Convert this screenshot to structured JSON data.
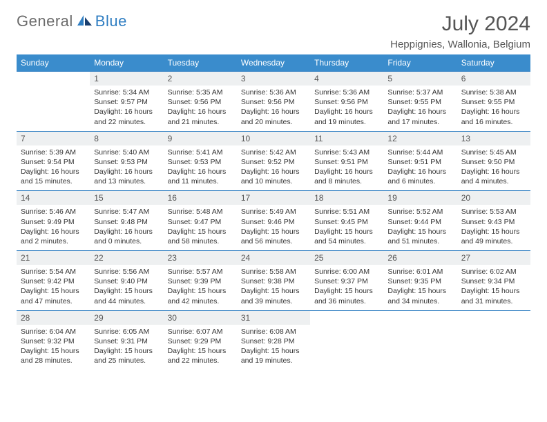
{
  "logo": {
    "part1": "General",
    "part2": "Blue"
  },
  "title": "July 2024",
  "location": "Heppignies, Wallonia, Belgium",
  "colors": {
    "header_bg": "#3a8ccc",
    "border": "#2f7ec2",
    "daynum_bg": "#eef0f1",
    "logo_gray": "#6b6b6b",
    "logo_blue": "#2f7ec2"
  },
  "weekdays": [
    "Sunday",
    "Monday",
    "Tuesday",
    "Wednesday",
    "Thursday",
    "Friday",
    "Saturday"
  ],
  "weeks": [
    {
      "days": [
        {
          "num": "",
          "sunrise": "",
          "sunset": "",
          "daylightA": "",
          "daylightB": ""
        },
        {
          "num": "1",
          "sunrise": "Sunrise: 5:34 AM",
          "sunset": "Sunset: 9:57 PM",
          "daylightA": "Daylight: 16 hours",
          "daylightB": "and 22 minutes."
        },
        {
          "num": "2",
          "sunrise": "Sunrise: 5:35 AM",
          "sunset": "Sunset: 9:56 PM",
          "daylightA": "Daylight: 16 hours",
          "daylightB": "and 21 minutes."
        },
        {
          "num": "3",
          "sunrise": "Sunrise: 5:36 AM",
          "sunset": "Sunset: 9:56 PM",
          "daylightA": "Daylight: 16 hours",
          "daylightB": "and 20 minutes."
        },
        {
          "num": "4",
          "sunrise": "Sunrise: 5:36 AM",
          "sunset": "Sunset: 9:56 PM",
          "daylightA": "Daylight: 16 hours",
          "daylightB": "and 19 minutes."
        },
        {
          "num": "5",
          "sunrise": "Sunrise: 5:37 AM",
          "sunset": "Sunset: 9:55 PM",
          "daylightA": "Daylight: 16 hours",
          "daylightB": "and 17 minutes."
        },
        {
          "num": "6",
          "sunrise": "Sunrise: 5:38 AM",
          "sunset": "Sunset: 9:55 PM",
          "daylightA": "Daylight: 16 hours",
          "daylightB": "and 16 minutes."
        }
      ]
    },
    {
      "days": [
        {
          "num": "7",
          "sunrise": "Sunrise: 5:39 AM",
          "sunset": "Sunset: 9:54 PM",
          "daylightA": "Daylight: 16 hours",
          "daylightB": "and 15 minutes."
        },
        {
          "num": "8",
          "sunrise": "Sunrise: 5:40 AM",
          "sunset": "Sunset: 9:53 PM",
          "daylightA": "Daylight: 16 hours",
          "daylightB": "and 13 minutes."
        },
        {
          "num": "9",
          "sunrise": "Sunrise: 5:41 AM",
          "sunset": "Sunset: 9:53 PM",
          "daylightA": "Daylight: 16 hours",
          "daylightB": "and 11 minutes."
        },
        {
          "num": "10",
          "sunrise": "Sunrise: 5:42 AM",
          "sunset": "Sunset: 9:52 PM",
          "daylightA": "Daylight: 16 hours",
          "daylightB": "and 10 minutes."
        },
        {
          "num": "11",
          "sunrise": "Sunrise: 5:43 AM",
          "sunset": "Sunset: 9:51 PM",
          "daylightA": "Daylight: 16 hours",
          "daylightB": "and 8 minutes."
        },
        {
          "num": "12",
          "sunrise": "Sunrise: 5:44 AM",
          "sunset": "Sunset: 9:51 PM",
          "daylightA": "Daylight: 16 hours",
          "daylightB": "and 6 minutes."
        },
        {
          "num": "13",
          "sunrise": "Sunrise: 5:45 AM",
          "sunset": "Sunset: 9:50 PM",
          "daylightA": "Daylight: 16 hours",
          "daylightB": "and 4 minutes."
        }
      ]
    },
    {
      "days": [
        {
          "num": "14",
          "sunrise": "Sunrise: 5:46 AM",
          "sunset": "Sunset: 9:49 PM",
          "daylightA": "Daylight: 16 hours",
          "daylightB": "and 2 minutes."
        },
        {
          "num": "15",
          "sunrise": "Sunrise: 5:47 AM",
          "sunset": "Sunset: 9:48 PM",
          "daylightA": "Daylight: 16 hours",
          "daylightB": "and 0 minutes."
        },
        {
          "num": "16",
          "sunrise": "Sunrise: 5:48 AM",
          "sunset": "Sunset: 9:47 PM",
          "daylightA": "Daylight: 15 hours",
          "daylightB": "and 58 minutes."
        },
        {
          "num": "17",
          "sunrise": "Sunrise: 5:49 AM",
          "sunset": "Sunset: 9:46 PM",
          "daylightA": "Daylight: 15 hours",
          "daylightB": "and 56 minutes."
        },
        {
          "num": "18",
          "sunrise": "Sunrise: 5:51 AM",
          "sunset": "Sunset: 9:45 PM",
          "daylightA": "Daylight: 15 hours",
          "daylightB": "and 54 minutes."
        },
        {
          "num": "19",
          "sunrise": "Sunrise: 5:52 AM",
          "sunset": "Sunset: 9:44 PM",
          "daylightA": "Daylight: 15 hours",
          "daylightB": "and 51 minutes."
        },
        {
          "num": "20",
          "sunrise": "Sunrise: 5:53 AM",
          "sunset": "Sunset: 9:43 PM",
          "daylightA": "Daylight: 15 hours",
          "daylightB": "and 49 minutes."
        }
      ]
    },
    {
      "days": [
        {
          "num": "21",
          "sunrise": "Sunrise: 5:54 AM",
          "sunset": "Sunset: 9:42 PM",
          "daylightA": "Daylight: 15 hours",
          "daylightB": "and 47 minutes."
        },
        {
          "num": "22",
          "sunrise": "Sunrise: 5:56 AM",
          "sunset": "Sunset: 9:40 PM",
          "daylightA": "Daylight: 15 hours",
          "daylightB": "and 44 minutes."
        },
        {
          "num": "23",
          "sunrise": "Sunrise: 5:57 AM",
          "sunset": "Sunset: 9:39 PM",
          "daylightA": "Daylight: 15 hours",
          "daylightB": "and 42 minutes."
        },
        {
          "num": "24",
          "sunrise": "Sunrise: 5:58 AM",
          "sunset": "Sunset: 9:38 PM",
          "daylightA": "Daylight: 15 hours",
          "daylightB": "and 39 minutes."
        },
        {
          "num": "25",
          "sunrise": "Sunrise: 6:00 AM",
          "sunset": "Sunset: 9:37 PM",
          "daylightA": "Daylight: 15 hours",
          "daylightB": "and 36 minutes."
        },
        {
          "num": "26",
          "sunrise": "Sunrise: 6:01 AM",
          "sunset": "Sunset: 9:35 PM",
          "daylightA": "Daylight: 15 hours",
          "daylightB": "and 34 minutes."
        },
        {
          "num": "27",
          "sunrise": "Sunrise: 6:02 AM",
          "sunset": "Sunset: 9:34 PM",
          "daylightA": "Daylight: 15 hours",
          "daylightB": "and 31 minutes."
        }
      ]
    },
    {
      "days": [
        {
          "num": "28",
          "sunrise": "Sunrise: 6:04 AM",
          "sunset": "Sunset: 9:32 PM",
          "daylightA": "Daylight: 15 hours",
          "daylightB": "and 28 minutes."
        },
        {
          "num": "29",
          "sunrise": "Sunrise: 6:05 AM",
          "sunset": "Sunset: 9:31 PM",
          "daylightA": "Daylight: 15 hours",
          "daylightB": "and 25 minutes."
        },
        {
          "num": "30",
          "sunrise": "Sunrise: 6:07 AM",
          "sunset": "Sunset: 9:29 PM",
          "daylightA": "Daylight: 15 hours",
          "daylightB": "and 22 minutes."
        },
        {
          "num": "31",
          "sunrise": "Sunrise: 6:08 AM",
          "sunset": "Sunset: 9:28 PM",
          "daylightA": "Daylight: 15 hours",
          "daylightB": "and 19 minutes."
        },
        {
          "num": "",
          "sunrise": "",
          "sunset": "",
          "daylightA": "",
          "daylightB": ""
        },
        {
          "num": "",
          "sunrise": "",
          "sunset": "",
          "daylightA": "",
          "daylightB": ""
        },
        {
          "num": "",
          "sunrise": "",
          "sunset": "",
          "daylightA": "",
          "daylightB": ""
        }
      ]
    }
  ]
}
